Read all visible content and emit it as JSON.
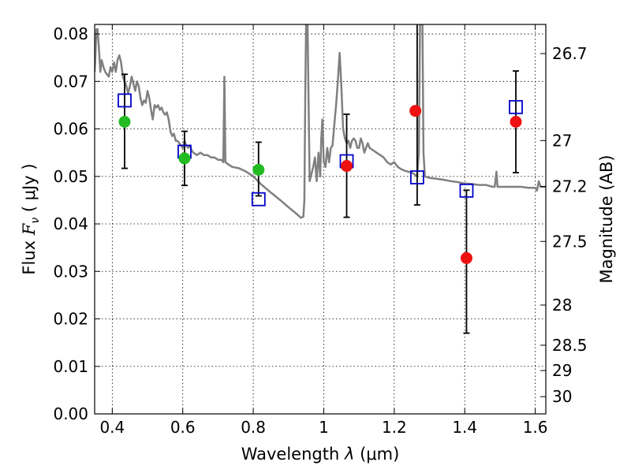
{
  "chart_data": {
    "type": "scatter",
    "title": "",
    "xlabel": {
      "prefix": "Wavelength  ",
      "symbol": "λ",
      "unit": " (μm)"
    },
    "ylabel": {
      "prefix": "Flux  ",
      "symbol": "F",
      "subscript": "ν",
      "unit": "  ( μJy )"
    },
    "y2label": "Magnitude (AB)",
    "xlim": [
      0.35,
      1.63
    ],
    "ylim": [
      0.0,
      0.082
    ],
    "grid": true,
    "x_ticks": [
      {
        "value": 0.4,
        "label": "0.4"
      },
      {
        "value": 0.6,
        "label": "0.6"
      },
      {
        "value": 0.8,
        "label": "0.8"
      },
      {
        "value": 1.0,
        "label": "1"
      },
      {
        "value": 1.2,
        "label": "1.2"
      },
      {
        "value": 1.4,
        "label": "1.4"
      },
      {
        "value": 1.6,
        "label": "1.6"
      }
    ],
    "y_ticks": [
      {
        "value": 0.0,
        "label": "0.00"
      },
      {
        "value": 0.01,
        "label": "0.01"
      },
      {
        "value": 0.02,
        "label": "0.02"
      },
      {
        "value": 0.03,
        "label": "0.03"
      },
      {
        "value": 0.04,
        "label": "0.04"
      },
      {
        "value": 0.05,
        "label": "0.05"
      },
      {
        "value": 0.06,
        "label": "0.06"
      },
      {
        "value": 0.07,
        "label": "0.07"
      },
      {
        "value": 0.08,
        "label": "0.08"
      }
    ],
    "mag_ticks": [
      {
        "value": 26.7,
        "label": "26.7"
      },
      {
        "value": 27.0,
        "label": "27"
      },
      {
        "value": 27.2,
        "label": "27.2"
      },
      {
        "value": 27.5,
        "label": "27.5"
      },
      {
        "value": 28.0,
        "label": "28"
      },
      {
        "value": 28.5,
        "label": "28.5"
      },
      {
        "value": 29.0,
        "label": "29"
      },
      {
        "value": 30.0,
        "label": "30"
      }
    ],
    "series": [
      {
        "kind": "model-spectrum",
        "color": "#808080",
        "points": [
          [
            0.35,
            0.072
          ],
          [
            0.352,
            0.075
          ],
          [
            0.355,
            0.081
          ],
          [
            0.358,
            0.081
          ],
          [
            0.362,
            0.077
          ],
          [
            0.366,
            0.072
          ],
          [
            0.37,
            0.0745
          ],
          [
            0.375,
            0.073
          ],
          [
            0.38,
            0.072
          ],
          [
            0.385,
            0.0715
          ],
          [
            0.39,
            0.071
          ],
          [
            0.395,
            0.073
          ],
          [
            0.4,
            0.072
          ],
          [
            0.405,
            0.074
          ],
          [
            0.41,
            0.072
          ],
          [
            0.415,
            0.0745
          ],
          [
            0.42,
            0.0755
          ],
          [
            0.425,
            0.074
          ],
          [
            0.43,
            0.071
          ],
          [
            0.435,
            0.07
          ],
          [
            0.44,
            0.069
          ],
          [
            0.445,
            0.0675
          ],
          [
            0.45,
            0.069
          ],
          [
            0.455,
            0.071
          ],
          [
            0.46,
            0.0695
          ],
          [
            0.465,
            0.068
          ],
          [
            0.47,
            0.07
          ],
          [
            0.475,
            0.069
          ],
          [
            0.48,
            0.0665
          ],
          [
            0.485,
            0.065
          ],
          [
            0.49,
            0.066
          ],
          [
            0.495,
            0.0655
          ],
          [
            0.5,
            0.068
          ],
          [
            0.505,
            0.0665
          ],
          [
            0.51,
            0.064
          ],
          [
            0.515,
            0.062
          ],
          [
            0.52,
            0.065
          ],
          [
            0.525,
            0.0645
          ],
          [
            0.53,
            0.065
          ],
          [
            0.535,
            0.064
          ],
          [
            0.54,
            0.0645
          ],
          [
            0.545,
            0.0635
          ],
          [
            0.55,
            0.063
          ],
          [
            0.555,
            0.0635
          ],
          [
            0.56,
            0.062
          ],
          [
            0.565,
            0.0595
          ],
          [
            0.57,
            0.0585
          ],
          [
            0.575,
            0.059
          ],
          [
            0.58,
            0.0575
          ],
          [
            0.585,
            0.0575
          ],
          [
            0.59,
            0.057
          ],
          [
            0.595,
            0.0565
          ],
          [
            0.6,
            0.056
          ],
          [
            0.605,
            0.0575
          ],
          [
            0.61,
            0.0565
          ],
          [
            0.615,
            0.056
          ],
          [
            0.62,
            0.0565
          ],
          [
            0.625,
            0.0555
          ],
          [
            0.63,
            0.055
          ],
          [
            0.64,
            0.0545
          ],
          [
            0.65,
            0.055
          ],
          [
            0.66,
            0.0545
          ],
          [
            0.67,
            0.0545
          ],
          [
            0.68,
            0.054
          ],
          [
            0.69,
            0.054
          ],
          [
            0.7,
            0.0535
          ],
          [
            0.71,
            0.0535
          ],
          [
            0.715,
            0.053
          ],
          [
            0.718,
            0.071
          ],
          [
            0.721,
            0.053
          ],
          [
            0.73,
            0.0525
          ],
          [
            0.74,
            0.052
          ],
          [
            0.76,
            0.0517
          ],
          [
            0.78,
            0.051
          ],
          [
            0.8,
            0.05
          ],
          [
            0.82,
            0.0485
          ],
          [
            0.84,
            0.0472
          ],
          [
            0.86,
            0.046
          ],
          [
            0.88,
            0.0448
          ],
          [
            0.9,
            0.0435
          ],
          [
            0.92,
            0.0423
          ],
          [
            0.935,
            0.0413
          ],
          [
            0.942,
            0.0415
          ],
          [
            0.945,
            0.045
          ],
          [
            0.948,
            0.07
          ],
          [
            0.95,
            0.082
          ],
          [
            0.954,
            0.082
          ],
          [
            0.957,
            0.065
          ],
          [
            0.96,
            0.049
          ],
          [
            0.965,
            0.0505
          ],
          [
            0.97,
            0.052
          ],
          [
            0.975,
            0.054
          ],
          [
            0.98,
            0.049
          ],
          [
            0.985,
            0.055
          ],
          [
            0.99,
            0.05
          ],
          [
            0.993,
            0.058
          ],
          [
            0.996,
            0.062
          ],
          [
            1.0,
            0.053
          ],
          [
            1.005,
            0.052
          ],
          [
            1.01,
            0.056
          ],
          [
            1.015,
            0.053
          ],
          [
            1.02,
            0.056
          ],
          [
            1.025,
            0.0565
          ],
          [
            1.03,
            0.061
          ],
          [
            1.035,
            0.065
          ],
          [
            1.04,
            0.07
          ],
          [
            1.045,
            0.076
          ],
          [
            1.05,
            0.069
          ],
          [
            1.055,
            0.06
          ],
          [
            1.06,
            0.058
          ],
          [
            1.065,
            0.057
          ],
          [
            1.07,
            0.0575
          ],
          [
            1.075,
            0.056
          ],
          [
            1.08,
            0.0575
          ],
          [
            1.085,
            0.058
          ],
          [
            1.09,
            0.0575
          ],
          [
            1.095,
            0.056
          ],
          [
            1.1,
            0.056
          ],
          [
            1.105,
            0.058
          ],
          [
            1.11,
            0.057
          ],
          [
            1.115,
            0.055
          ],
          [
            1.12,
            0.056
          ],
          [
            1.125,
            0.057
          ],
          [
            1.13,
            0.056
          ],
          [
            1.14,
            0.0555
          ],
          [
            1.15,
            0.055
          ],
          [
            1.16,
            0.0545
          ],
          [
            1.17,
            0.054
          ],
          [
            1.18,
            0.053
          ],
          [
            1.19,
            0.0525
          ],
          [
            1.2,
            0.053
          ],
          [
            1.21,
            0.052
          ],
          [
            1.22,
            0.0515
          ],
          [
            1.23,
            0.0512
          ],
          [
            1.24,
            0.051
          ],
          [
            1.25,
            0.0508
          ],
          [
            1.26,
            0.0503
          ],
          [
            1.265,
            0.05
          ],
          [
            1.27,
            0.055
          ],
          [
            1.273,
            0.082
          ],
          [
            1.28,
            0.082
          ],
          [
            1.283,
            0.055
          ],
          [
            1.287,
            0.05
          ],
          [
            1.3,
            0.0497
          ],
          [
            1.32,
            0.0495
          ],
          [
            1.34,
            0.0493
          ],
          [
            1.36,
            0.049
          ],
          [
            1.38,
            0.0488
          ],
          [
            1.4,
            0.0485
          ],
          [
            1.42,
            0.0484
          ],
          [
            1.44,
            0.0482
          ],
          [
            1.46,
            0.0482
          ],
          [
            1.47,
            0.048
          ],
          [
            1.48,
            0.0478
          ],
          [
            1.485,
            0.0478
          ],
          [
            1.49,
            0.051
          ],
          [
            1.493,
            0.0478
          ],
          [
            1.5,
            0.0478
          ],
          [
            1.52,
            0.0478
          ],
          [
            1.54,
            0.0478
          ],
          [
            1.56,
            0.0478
          ],
          [
            1.58,
            0.0476
          ],
          [
            1.6,
            0.0476
          ],
          [
            1.605,
            0.047
          ],
          [
            1.61,
            0.049
          ],
          [
            1.615,
            0.0478
          ],
          [
            1.62,
            0.0478
          ],
          [
            1.63,
            0.0478
          ]
        ]
      },
      {
        "kind": "model-flux",
        "marker": "open-square",
        "color": "#0000cc",
        "x": [
          0.435,
          0.605,
          0.815,
          1.065,
          1.265,
          1.405,
          1.545
        ],
        "y": [
          0.066,
          0.0552,
          0.0452,
          0.0532,
          0.0498,
          0.047,
          0.0646
        ]
      },
      {
        "kind": "observed-detection",
        "marker": "filled-circle",
        "color": "#22bb22",
        "x": [
          0.435,
          0.605,
          0.815
        ],
        "y": [
          0.0615,
          0.0538,
          0.0514
        ]
      },
      {
        "kind": "observed-detection",
        "marker": "filled-circle",
        "color": "#ee1111",
        "x": [
          1.065,
          1.26,
          1.405,
          1.545
        ],
        "y": [
          0.0522,
          0.0638,
          0.0328,
          0.0615
        ]
      },
      {
        "kind": "errorbars",
        "color": "#000000",
        "x": [
          0.435,
          0.605,
          0.815,
          1.065,
          1.265,
          1.405,
          1.545
        ],
        "low": [
          0.0517,
          0.0481,
          0.0459,
          0.0414,
          0.044,
          0.017,
          0.0508
        ],
        "high": [
          0.0715,
          0.0595,
          0.0572,
          0.0631,
          0.082,
          0.0471,
          0.0722
        ]
      }
    ]
  }
}
